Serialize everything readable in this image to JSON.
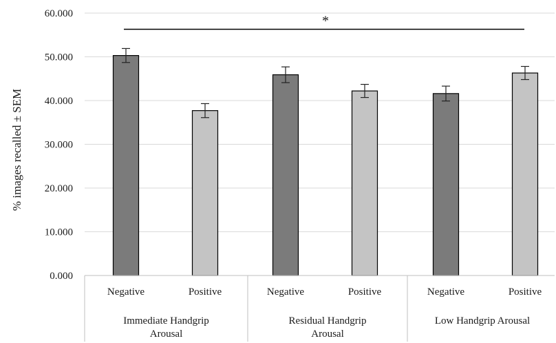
{
  "chart_data": {
    "type": "bar",
    "title": "",
    "ylabel": "% images recalled ± SEM",
    "ylim": [
      0,
      60
    ],
    "yticks": [
      "0.000",
      "10.000",
      "20.000",
      "30.000",
      "40.000",
      "50.000",
      "60.000"
    ],
    "grid": true,
    "groups": [
      {
        "label_lines": [
          "Immediate Handgrip",
          "Arousal"
        ]
      },
      {
        "label_lines": [
          "Residual Handgrip",
          "Arousal"
        ]
      },
      {
        "label_lines": [
          "Low Handgrip Arousal"
        ]
      }
    ],
    "categories": [
      "Negative",
      "Positive",
      "Negative",
      "Positive",
      "Negative",
      "Positive"
    ],
    "values": [
      50.3,
      37.7,
      45.9,
      42.2,
      41.6,
      46.3
    ],
    "errors": [
      1.6,
      1.6,
      1.8,
      1.5,
      1.7,
      1.5
    ],
    "bar_colors": [
      "#7b7b7b",
      "#c4c4c4",
      "#7b7b7b",
      "#c4c4c4",
      "#7b7b7b",
      "#c4c4c4"
    ],
    "significance": {
      "label": "*",
      "y": 56.3
    }
  }
}
